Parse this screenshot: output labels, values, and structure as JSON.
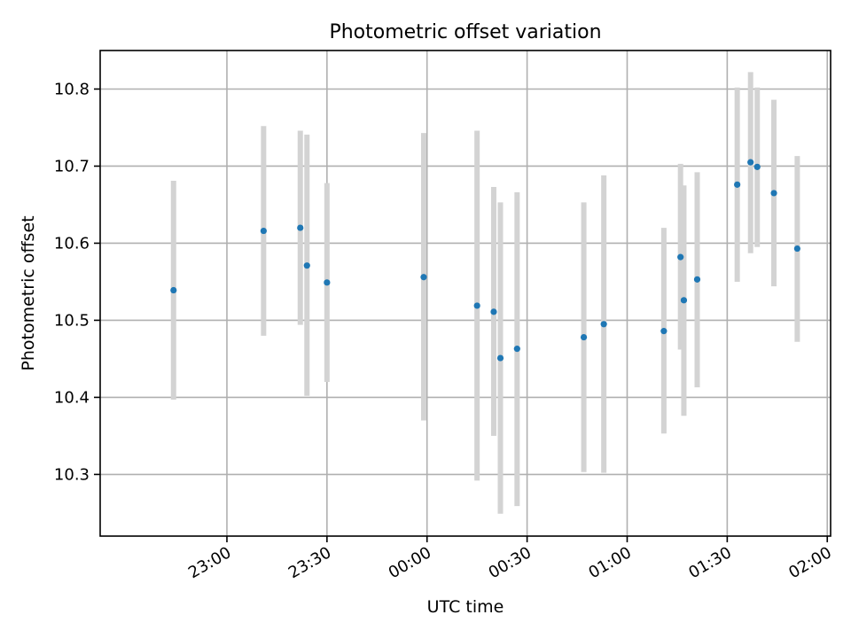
{
  "chart_data": {
    "type": "scatter",
    "title": "Photometric offset variation",
    "xlabel": "UTC time",
    "ylabel": "Photometric offset",
    "grid": true,
    "x_unit": "UTC time (hours from 22:00, values beyond 24 wrap to next day)",
    "xlim": [
      "22:22",
      "02:01"
    ],
    "ylim": [
      10.22,
      10.85
    ],
    "x_ticks": [
      "23:00",
      "23:30",
      "00:00",
      "00:30",
      "01:00",
      "01:30",
      "02:00"
    ],
    "y_ticks": [
      "10.3",
      "10.4",
      "10.5",
      "10.6",
      "10.7",
      "10.8"
    ],
    "points": [
      {
        "time": "22:44",
        "y": 10.539,
        "low": 10.397,
        "high": 10.681
      },
      {
        "time": "23:11",
        "y": 10.616,
        "low": 10.48,
        "high": 10.752
      },
      {
        "time": "23:22",
        "y": 10.62,
        "low": 10.494,
        "high": 10.746
      },
      {
        "time": "23:24",
        "y": 10.571,
        "low": 10.402,
        "high": 10.741
      },
      {
        "time": "23:30",
        "y": 10.549,
        "low": 10.42,
        "high": 10.678
      },
      {
        "time": "23:59",
        "y": 10.556,
        "low": 10.37,
        "high": 10.743
      },
      {
        "time": "00:15",
        "y": 10.519,
        "low": 10.292,
        "high": 10.746
      },
      {
        "time": "00:20",
        "y": 10.511,
        "low": 10.35,
        "high": 10.673
      },
      {
        "time": "00:22",
        "y": 10.451,
        "low": 10.249,
        "high": 10.653
      },
      {
        "time": "00:27",
        "y": 10.463,
        "low": 10.259,
        "high": 10.666
      },
      {
        "time": "00:47",
        "y": 10.478,
        "low": 10.303,
        "high": 10.653
      },
      {
        "time": "00:53",
        "y": 10.495,
        "low": 10.302,
        "high": 10.688
      },
      {
        "time": "01:11",
        "y": 10.486,
        "low": 10.353,
        "high": 10.62
      },
      {
        "time": "01:16",
        "y": 10.582,
        "low": 10.462,
        "high": 10.703
      },
      {
        "time": "01:17",
        "y": 10.526,
        "low": 10.376,
        "high": 10.675
      },
      {
        "time": "01:21",
        "y": 10.553,
        "low": 10.413,
        "high": 10.692
      },
      {
        "time": "01:33",
        "y": 10.676,
        "low": 10.55,
        "high": 10.802
      },
      {
        "time": "01:37",
        "y": 10.705,
        "low": 10.587,
        "high": 10.822
      },
      {
        "time": "01:39",
        "y": 10.699,
        "low": 10.595,
        "high": 10.802
      },
      {
        "time": "01:44",
        "y": 10.665,
        "low": 10.544,
        "high": 10.786
      },
      {
        "time": "01:51",
        "y": 10.593,
        "low": 10.472,
        "high": 10.713
      }
    ]
  }
}
